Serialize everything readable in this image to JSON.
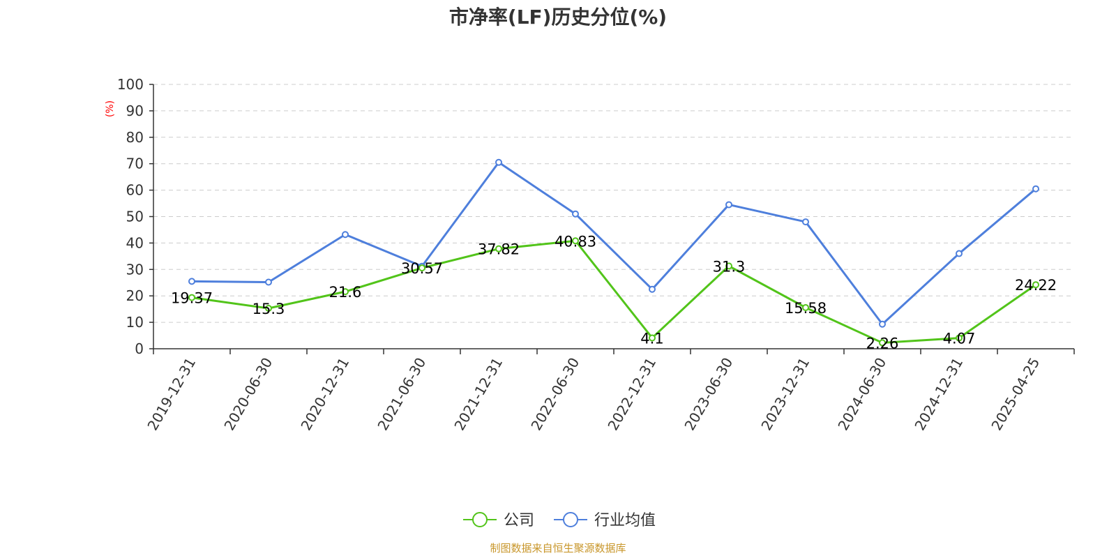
{
  "chart_data": {
    "type": "line",
    "title": "市净率(LF)历史分位(%)",
    "ylabel": "(%)",
    "xlabel": "",
    "categories": [
      "2019-12-31",
      "2020-06-30",
      "2020-12-31",
      "2021-06-30",
      "2021-12-31",
      "2022-06-30",
      "2022-12-31",
      "2023-06-30",
      "2023-12-31",
      "2024-06-30",
      "2024-12-31",
      "2025-04-25"
    ],
    "ylim": [
      0,
      100
    ],
    "yticks": [
      0,
      10,
      20,
      30,
      40,
      50,
      60,
      70,
      80,
      90,
      100
    ],
    "grid": true,
    "legend_position": "bottom",
    "series": [
      {
        "name": "公司",
        "color": "#52c41a",
        "values": [
          19.37,
          15.3,
          21.6,
          30.57,
          37.82,
          40.83,
          4.1,
          31.3,
          15.58,
          2.26,
          4.07,
          24.22
        ],
        "labels": [
          "19.37",
          "15.3",
          "21.6",
          "30.57",
          "37.82",
          "40.83",
          "4.1",
          "31.3",
          "15.58",
          "2.26",
          "4.07",
          "24.22"
        ]
      },
      {
        "name": "行业均值",
        "color": "#4e7fdc",
        "values": [
          25.5,
          25.2,
          43.2,
          31.2,
          70.5,
          51.0,
          22.5,
          54.5,
          48.0,
          9.3,
          36.0,
          60.5
        ]
      }
    ]
  },
  "source": "制图数据来自恒生聚源数据库",
  "colors": {
    "axis": "#333333",
    "grid": "#cccccc",
    "unit": "#ff0000",
    "source": "#c8962a"
  }
}
